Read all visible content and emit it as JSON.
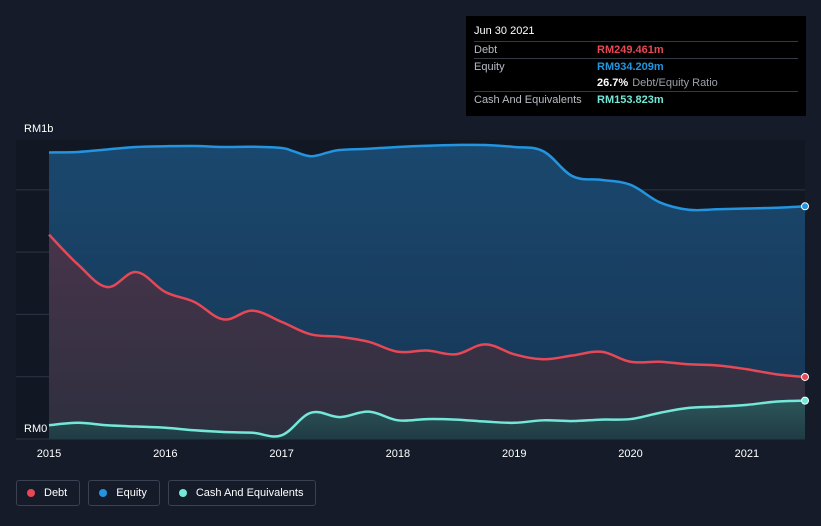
{
  "colors": {
    "background": "#151b28",
    "debt": "#e64856",
    "equity": "#2394df",
    "cash": "#74e8d8",
    "grid": "#2c3444"
  },
  "tooltip": {
    "date": "Jun 30 2021",
    "debt_label": "Debt",
    "debt_value": "RM249.461m",
    "equity_label": "Equity",
    "equity_value": "RM934.209m",
    "ratio_value": "26.7%",
    "ratio_label": "Debt/Equity Ratio",
    "cash_label": "Cash And Equivalents",
    "cash_value": "RM153.823m"
  },
  "legend": [
    {
      "label": "Debt",
      "color": "#e64856"
    },
    {
      "label": "Equity",
      "color": "#2394df"
    },
    {
      "label": "Cash And Equivalents",
      "color": "#74e8d8"
    }
  ],
  "chart_data": {
    "type": "area",
    "y_top_label": "RM1b",
    "y_bottom_label": "RM0",
    "ylim": [
      0,
      1200
    ],
    "xlim": [
      2015,
      2021.5
    ],
    "x_ticks": [
      "2015",
      "2016",
      "2017",
      "2018",
      "2019",
      "2020",
      "2021"
    ],
    "grid": true,
    "legend_position": "bottom-left",
    "series": [
      {
        "name": "Equity",
        "color": "#2394df",
        "x": [
          2015,
          2015.25,
          2015.5,
          2015.75,
          2016,
          2016.25,
          2016.5,
          2016.75,
          2017,
          2017.1,
          2017.25,
          2017.4,
          2017.5,
          2017.75,
          2018,
          2018.25,
          2018.5,
          2018.75,
          2019,
          2019.25,
          2019.5,
          2019.75,
          2020,
          2020.25,
          2020.5,
          2020.75,
          2021,
          2021.25,
          2021.5
        ],
        "values": [
          1150,
          1152,
          1162,
          1172,
          1175,
          1176,
          1172,
          1173,
          1168,
          1155,
          1135,
          1150,
          1160,
          1165,
          1172,
          1177,
          1180,
          1180,
          1172,
          1155,
          1055,
          1040,
          1020,
          950,
          920,
          922,
          925,
          928,
          934
        ]
      },
      {
        "name": "Debt",
        "color": "#e64856",
        "x": [
          2015,
          2015.25,
          2015.5,
          2015.75,
          2016,
          2016.25,
          2016.5,
          2016.75,
          2017,
          2017.25,
          2017.5,
          2017.75,
          2018,
          2018.25,
          2018.5,
          2018.75,
          2019,
          2019.25,
          2019.5,
          2019.75,
          2020,
          2020.25,
          2020.5,
          2020.75,
          2021,
          2021.25,
          2021.5
        ],
        "values": [
          820,
          700,
          610,
          670,
          590,
          550,
          480,
          515,
          470,
          420,
          410,
          390,
          350,
          355,
          340,
          380,
          340,
          320,
          335,
          350,
          310,
          310,
          300,
          295,
          280,
          260,
          249
        ]
      },
      {
        "name": "Cash And Equivalents",
        "color": "#74e8d8",
        "x": [
          2015,
          2015.25,
          2015.5,
          2015.75,
          2016,
          2016.25,
          2016.5,
          2016.75,
          2017,
          2017.25,
          2017.5,
          2017.75,
          2018,
          2018.25,
          2018.5,
          2018.75,
          2019,
          2019.25,
          2019.5,
          2019.75,
          2020,
          2020.25,
          2020.5,
          2020.75,
          2021,
          2021.25,
          2021.5
        ],
        "values": [
          55,
          65,
          55,
          50,
          45,
          35,
          28,
          25,
          15,
          105,
          88,
          110,
          75,
          80,
          78,
          70,
          65,
          75,
          72,
          78,
          80,
          105,
          125,
          130,
          137,
          150,
          154
        ]
      }
    ]
  }
}
